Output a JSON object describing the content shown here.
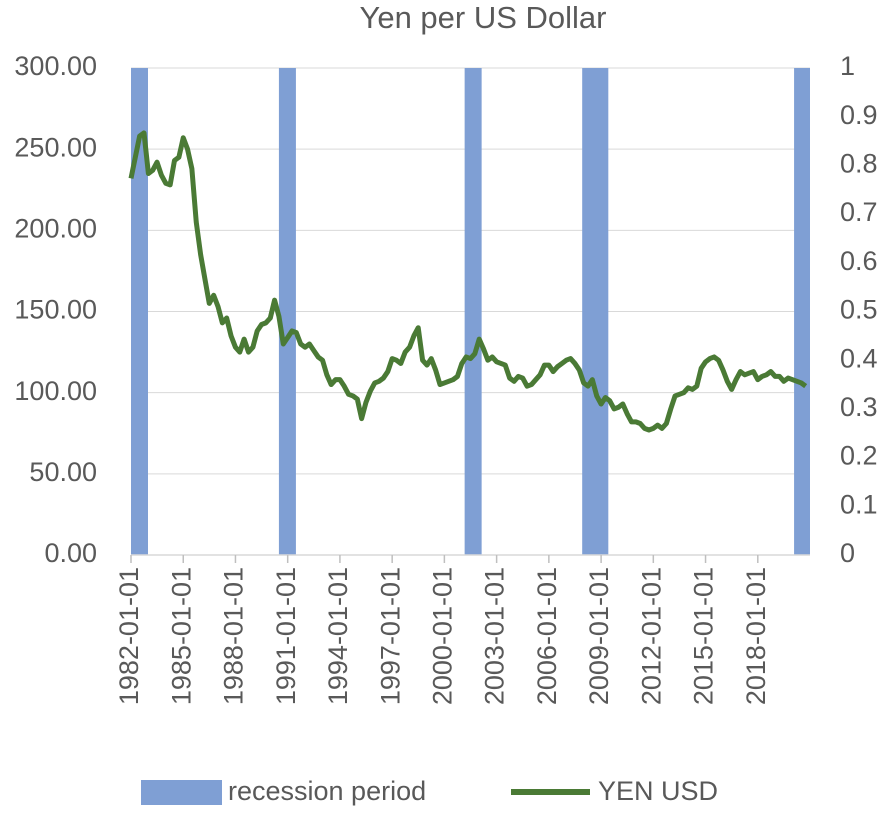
{
  "chart_data": {
    "type": "line",
    "title": "Yen per US Dollar",
    "xlim": [
      "1982-01-01",
      "2020-12-31"
    ],
    "xticks": [
      "1982-01-01",
      "1985-01-01",
      "1988-01-01",
      "1991-01-01",
      "1994-01-01",
      "1997-01-01",
      "2000-01-01",
      "2003-01-01",
      "2006-01-01",
      "2009-01-01",
      "2012-01-01",
      "2015-01-01",
      "2018-01-01"
    ],
    "ylim": [
      0,
      300
    ],
    "yticks": [
      {
        "value": 0,
        "label": "0.00"
      },
      {
        "value": 50,
        "label": "50.00"
      },
      {
        "value": 100,
        "label": "100.00"
      },
      {
        "value": 150,
        "label": "150.00"
      },
      {
        "value": 200,
        "label": "200.00"
      },
      {
        "value": 250,
        "label": "250.00"
      },
      {
        "value": 300,
        "label": "300.00"
      }
    ],
    "y2lim": [
      0,
      1
    ],
    "y2ticks": [
      0,
      0.1,
      0.2,
      0.3,
      0.4,
      0.5,
      0.6,
      0.7,
      0.8,
      0.9,
      1
    ],
    "grid": true,
    "legend": "bottom",
    "series": [
      {
        "name": "recession period",
        "type": "bar",
        "axis": "y2",
        "color": "#7f9fd4",
        "x": [
          "1982-01-01",
          "1990-07-01",
          "2001-03-01",
          "2007-12-01",
          "2020-02-01"
        ],
        "x_end": [
          "1982-12-01",
          "1991-03-01",
          "2001-11-01",
          "2009-06-01",
          "2020-12-31"
        ],
        "values": [
          1,
          1,
          1,
          1,
          1
        ]
      },
      {
        "name": "YEN USD",
        "type": "line",
        "color": "#4a7a35",
        "x": [
          "1982-01-01",
          "1982-07-01",
          "1982-10-01",
          "1983-01-01",
          "1983-04-01",
          "1983-07-01",
          "1983-10-01",
          "1984-01-01",
          "1984-04-01",
          "1984-07-01",
          "1984-10-01",
          "1985-01-01",
          "1985-04-01",
          "1985-07-01",
          "1985-10-01",
          "1986-01-01",
          "1986-04-01",
          "1986-07-01",
          "1986-10-01",
          "1987-01-01",
          "1987-04-01",
          "1987-07-01",
          "1987-10-01",
          "1988-01-01",
          "1988-04-01",
          "1988-07-01",
          "1988-10-01",
          "1989-01-01",
          "1989-04-01",
          "1989-07-01",
          "1989-10-01",
          "1990-01-01",
          "1990-04-01",
          "1990-07-01",
          "1990-10-01",
          "1991-01-01",
          "1991-04-01",
          "1991-07-01",
          "1991-10-01",
          "1992-01-01",
          "1992-04-01",
          "1992-07-01",
          "1992-10-01",
          "1993-01-01",
          "1993-04-01",
          "1993-07-01",
          "1993-10-01",
          "1994-01-01",
          "1994-04-01",
          "1994-07-01",
          "1994-10-01",
          "1995-01-01",
          "1995-04-01",
          "1995-07-01",
          "1995-10-01",
          "1996-01-01",
          "1996-04-01",
          "1996-07-01",
          "1996-10-01",
          "1997-01-01",
          "1997-04-01",
          "1997-07-01",
          "1997-10-01",
          "1998-01-01",
          "1998-04-01",
          "1998-07-01",
          "1998-10-01",
          "1999-01-01",
          "1999-04-01",
          "1999-07-01",
          "1999-10-01",
          "2000-01-01",
          "2000-04-01",
          "2000-07-01",
          "2000-10-01",
          "2001-01-01",
          "2001-04-01",
          "2001-07-01",
          "2001-10-01",
          "2002-01-01",
          "2002-04-01",
          "2002-07-01",
          "2002-10-01",
          "2003-01-01",
          "2003-04-01",
          "2003-07-01",
          "2003-10-01",
          "2004-01-01",
          "2004-04-01",
          "2004-07-01",
          "2004-10-01",
          "2005-01-01",
          "2005-04-01",
          "2005-07-01",
          "2005-10-01",
          "2006-01-01",
          "2006-04-01",
          "2006-07-01",
          "2006-10-01",
          "2007-01-01",
          "2007-04-01",
          "2007-07-01",
          "2007-10-01",
          "2008-01-01",
          "2008-04-01",
          "2008-07-01",
          "2008-10-01",
          "2009-01-01",
          "2009-04-01",
          "2009-07-01",
          "2009-10-01",
          "2010-01-01",
          "2010-04-01",
          "2010-07-01",
          "2010-10-01",
          "2011-01-01",
          "2011-04-01",
          "2011-07-01",
          "2011-10-01",
          "2012-01-01",
          "2012-04-01",
          "2012-07-01",
          "2012-10-01",
          "2013-01-01",
          "2013-04-01",
          "2013-07-01",
          "2013-10-01",
          "2014-01-01",
          "2014-04-01",
          "2014-07-01",
          "2014-10-01",
          "2015-01-01",
          "2015-04-01",
          "2015-07-01",
          "2015-10-01",
          "2016-01-01",
          "2016-04-01",
          "2016-07-01",
          "2016-10-01",
          "2017-01-01",
          "2017-04-01",
          "2017-07-01",
          "2017-10-01",
          "2018-01-01",
          "2018-04-01",
          "2018-07-01",
          "2018-10-01",
          "2019-01-01",
          "2019-04-01",
          "2019-07-01",
          "2019-10-01",
          "2020-01-01",
          "2020-04-01",
          "2020-07-01",
          "2020-10-01"
        ],
        "values": [
          232,
          258,
          260,
          235,
          237,
          242,
          234,
          229,
          228,
          243,
          245,
          257,
          250,
          238,
          205,
          185,
          170,
          155,
          160,
          153,
          143,
          146,
          135,
          128,
          125,
          133,
          125,
          128,
          138,
          142,
          143,
          146,
          157,
          147,
          130,
          134,
          138,
          137,
          130,
          128,
          130,
          126,
          122,
          120,
          111,
          105,
          108,
          108,
          104,
          99,
          98,
          96,
          84,
          94,
          101,
          106,
          107,
          109,
          113,
          121,
          120,
          118,
          125,
          128,
          135,
          140,
          120,
          117,
          121,
          114,
          105,
          106,
          107,
          108,
          110,
          118,
          122,
          121,
          124,
          133,
          127,
          120,
          122,
          119,
          118,
          117,
          109,
          107,
          110,
          109,
          104,
          105,
          108,
          111,
          117,
          117,
          113,
          116,
          118,
          120,
          121,
          118,
          114,
          106,
          104,
          108,
          98,
          93,
          97,
          95,
          90,
          91,
          93,
          87,
          82,
          82,
          81,
          78,
          77,
          78,
          80,
          78,
          81,
          90,
          98,
          99,
          100,
          103,
          102,
          104,
          115,
          119,
          121,
          122,
          120,
          114,
          107,
          102,
          108,
          113,
          111,
          112,
          113,
          108,
          110,
          111,
          113,
          110,
          110,
          107,
          109,
          108,
          107,
          106,
          104
        ]
      }
    ]
  }
}
